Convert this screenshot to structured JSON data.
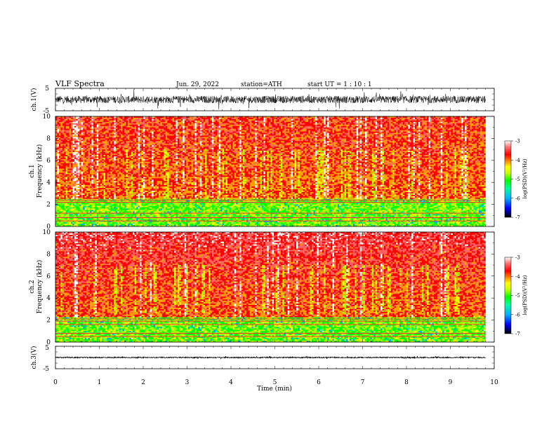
{
  "header": {
    "title": "VLF  Spectra",
    "date": "Jun. 29, 2022",
    "station": "station=ATH",
    "start_ut": "start  UT  =    1  : 10 : 1"
  },
  "chart_data": [
    {
      "type": "line",
      "panel": "ch1-waveform",
      "ylabel": "ch.1(V)",
      "ylim": [
        -5,
        5
      ],
      "yticks": [
        "5",
        "-5"
      ],
      "xlim": [
        0,
        10
      ],
      "signal": "noise around 0 V, envelope about ±2 V",
      "colors": {
        "line": "#000000"
      }
    },
    {
      "type": "heatmap",
      "panel": "ch1-spectrogram",
      "ylabel": "ch.1\nFrequency (kHz)",
      "ylabel_top": "ch.1",
      "ylabel_bottom": "Frequency (kHz)",
      "ylim": [
        0,
        10
      ],
      "yticks": [
        "0",
        "2",
        "4",
        "6",
        "8",
        "10"
      ],
      "xlim": [
        0,
        10
      ],
      "data_end_min": 9.8,
      "colorbar": {
        "label": "log(PSD)(V²/Hz)",
        "range": [
          -7,
          -3
        ],
        "ticks": [
          "-3",
          "-4",
          "-5",
          "-6",
          "-7"
        ]
      },
      "features": {
        "horizontal_lines_khz": [
          0.5,
          0.8,
          1.2,
          2.2,
          2.4
        ],
        "low_band_khz": [
          0,
          2.5
        ]
      }
    },
    {
      "type": "heatmap",
      "panel": "ch2-spectrogram",
      "ylabel": "ch.2\nFrequency (kHz)",
      "ylabel_top": "ch.2",
      "ylabel_bottom": "Frequency (kHz)",
      "ylim": [
        0,
        10
      ],
      "yticks": [
        "0",
        "2",
        "4",
        "6",
        "8",
        "10"
      ],
      "xlim": [
        0,
        10
      ],
      "data_end_min": 9.8,
      "colorbar": {
        "label": "log(PSD)(V²/Hz)",
        "range": [
          -7,
          -3
        ],
        "ticks": [
          "-3",
          "-4",
          "-5",
          "-6",
          "-7"
        ]
      },
      "features": {
        "horizontal_lines_khz": [
          0.5,
          0.8,
          1.6,
          1.9,
          2.1
        ],
        "low_band_khz": [
          0,
          2.2
        ]
      }
    },
    {
      "type": "line",
      "panel": "ch3-waveform",
      "ylabel": "ch.3(V)",
      "ylim": [
        -5,
        5
      ],
      "yticks": [
        "5",
        "0",
        "-5"
      ],
      "xlim": [
        0,
        10
      ],
      "xlabel": "Time  (min)",
      "xticks": [
        "0",
        "1",
        "2",
        "3",
        "4",
        "5",
        "6",
        "7",
        "8",
        "9",
        "10"
      ],
      "signal": "nearly flat trace near 0 V",
      "colors": {
        "line": "#000000"
      }
    }
  ],
  "colormap": [
    "#000000",
    "#0000ff",
    "#00a0ff",
    "#00ffa0",
    "#00ff00",
    "#a0ff00",
    "#ffff00",
    "#ffa000",
    "#ff0000",
    "#ff6060",
    "#ffffff"
  ]
}
